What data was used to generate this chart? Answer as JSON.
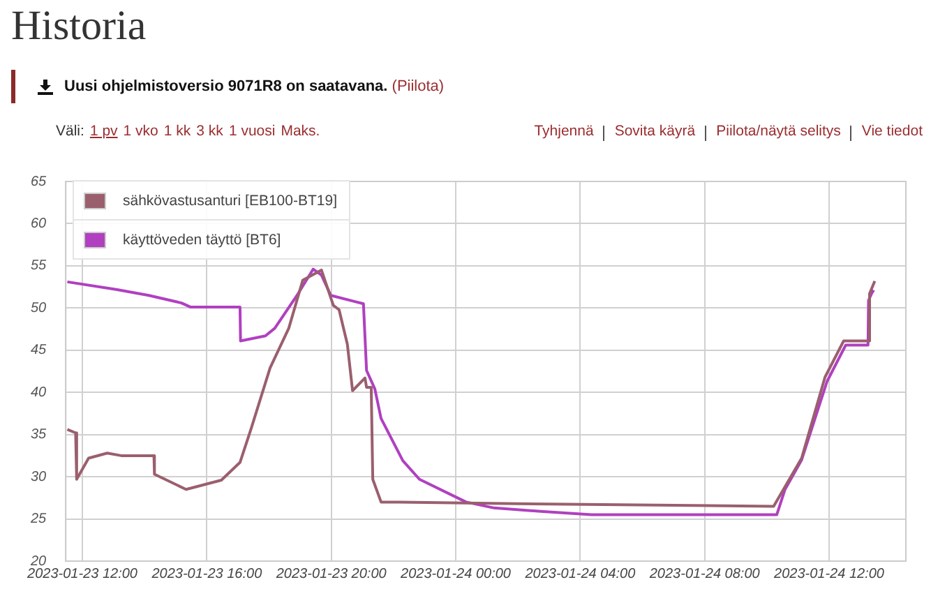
{
  "chart_data": {
    "type": "line",
    "title": "Historia",
    "annotations": [
      "Uusi ohjelmistoversio 9071R8 on saatavana.",
      "(Piilota)",
      "Väli:",
      "1 pv",
      "1 vko",
      "1 kk",
      "3 kk",
      "1 vuosi",
      "Maks.",
      "Tyhjennä",
      "Sovita käyrä",
      "Piilota/näytä selitys",
      "Vie tiedot"
    ],
    "xlim": [
      "2023-01-23T11:28",
      "2023-01-24T14:28"
    ],
    "xticks": [
      {
        "value": "2023-01-23T12:00",
        "label": "2023-01-23 12:00"
      },
      {
        "value": "2023-01-23T16:00",
        "label": "2023-01-23 16:00"
      },
      {
        "value": "2023-01-23T20:00",
        "label": "2023-01-23 20:00"
      },
      {
        "value": "2023-01-24T00:00",
        "label": "2023-01-24 00:00"
      },
      {
        "value": "2023-01-24T04:00",
        "label": "2023-01-24 04:00"
      },
      {
        "value": "2023-01-24T08:00",
        "label": "2023-01-24 08:00"
      },
      {
        "value": "2023-01-24T12:00",
        "label": "2023-01-24 12:00"
      }
    ],
    "ylim": [
      20,
      65
    ],
    "yticks": [
      20,
      25,
      30,
      35,
      40,
      45,
      50,
      55,
      60,
      65
    ],
    "grid": true,
    "legend": "top left",
    "marker": "none",
    "line_style": "solid",
    "series": [
      {
        "name": "sähkövastusanturi [EB100-BT19]",
        "color": "#9a5f6d",
        "x": [
          "2023-01-23T11:31",
          "2023-01-23T11:47",
          "2023-01-23T11:49",
          "2023-01-23T12:12",
          "2023-01-23T12:48",
          "2023-01-23T13:15",
          "2023-01-23T14:18",
          "2023-01-23T14:19",
          "2023-01-23T15:20",
          "2023-01-23T16:28",
          "2023-01-23T17:04",
          "2023-01-23T17:26",
          "2023-01-23T18:02",
          "2023-01-23T18:38",
          "2023-01-23T19:05",
          "2023-01-23T19:41",
          "2023-01-23T20:04",
          "2023-01-23T20:15",
          "2023-01-23T20:31",
          "2023-01-23T20:41",
          "2023-01-23T21:05",
          "2023-01-23T21:08",
          "2023-01-23T21:17",
          "2023-01-23T21:20",
          "2023-01-23T21:36",
          "2023-01-23T22:12",
          "2023-01-24T02:00",
          "2023-01-24T10:13",
          "2023-01-24T10:31",
          "2023-01-24T11:07",
          "2023-01-24T11:52",
          "2023-01-24T12:28",
          "2023-01-24T13:17",
          "2023-01-24T13:18",
          "2023-01-24T13:28"
        ],
        "values": [
          35.6,
          35.2,
          29.7,
          32.2,
          32.8,
          32.5,
          32.5,
          30.3,
          28.5,
          29.6,
          31.7,
          35.8,
          42.9,
          47.6,
          53.3,
          54.5,
          50.3,
          49.8,
          45.7,
          40.2,
          41.7,
          40.6,
          40.6,
          29.7,
          27.0,
          27.0,
          26.8,
          26.5,
          28.4,
          32.2,
          41.8,
          46.1,
          46.1,
          51.7,
          53.2
        ]
      },
      {
        "name": "käyttöveden täyttö [BT6]",
        "color": "#b040c0",
        "x": [
          "2023-01-23T11:31",
          "2023-01-23T13:05",
          "2023-01-23T14:08",
          "2023-01-23T15:11",
          "2023-01-23T15:29",
          "2023-01-23T17:04",
          "2023-01-23T17:05",
          "2023-01-23T17:53",
          "2023-01-23T18:11",
          "2023-01-23T18:56",
          "2023-01-23T19:25",
          "2023-01-23T19:41",
          "2023-01-23T19:59",
          "2023-01-23T21:02",
          "2023-01-23T21:08",
          "2023-01-23T21:24",
          "2023-01-23T21:36",
          "2023-01-23T22:18",
          "2023-01-23T22:50",
          "2023-01-24T00:20",
          "2023-01-24T01:14",
          "2023-01-24T02:44",
          "2023-01-24T04:22",
          "2023-01-24T10:19",
          "2023-01-24T10:35",
          "2023-01-24T11:07",
          "2023-01-24T11:56",
          "2023-01-24T12:32",
          "2023-01-24T13:15",
          "2023-01-24T13:16",
          "2023-01-24T13:24",
          "2023-01-24T13:27"
        ],
        "values": [
          53.1,
          52.2,
          51.5,
          50.6,
          50.1,
          50.1,
          46.1,
          46.7,
          47.6,
          51.7,
          54.6,
          53.9,
          51.5,
          50.5,
          42.6,
          40.4,
          36.9,
          31.9,
          29.7,
          27.0,
          26.3,
          25.9,
          25.5,
          25.5,
          28.5,
          32.0,
          41.3,
          45.6,
          45.6,
          50.9,
          52.0,
          51.9
        ]
      }
    ]
  }
}
